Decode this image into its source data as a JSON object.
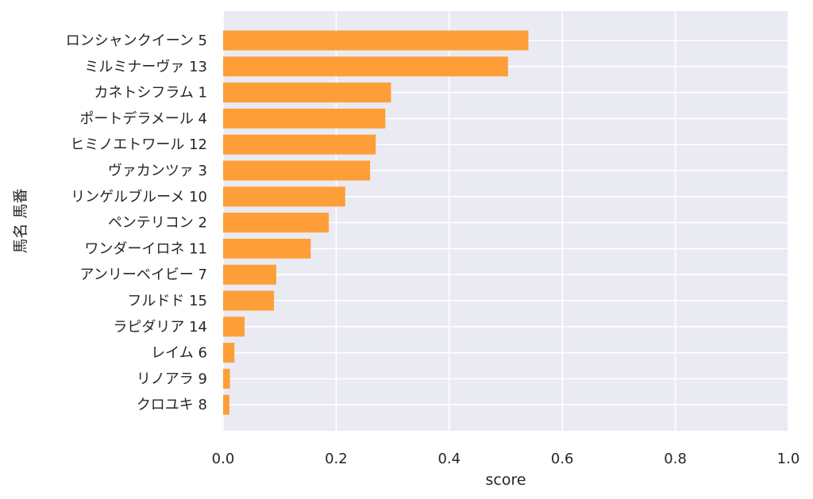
{
  "chart_data": {
    "type": "bar",
    "orientation": "horizontal",
    "categories": [
      "ロンシャンクイーン 5",
      "ミルミナーヴァ 13",
      "カネトシフラム 1",
      "ポートデラメール 4",
      "ヒミノエトワール 12",
      "ヴァカンツァ 3",
      "リンゲルブルーメ 10",
      "ペンテリコン 2",
      "ワンダーイロネ 11",
      "アンリーベイビー 7",
      "フルドド 15",
      "ラピダリア 14",
      "レイム 6",
      "リノアラ 9",
      "クロユキ 8"
    ],
    "values": [
      0.54,
      0.504,
      0.297,
      0.287,
      0.27,
      0.26,
      0.216,
      0.187,
      0.155,
      0.094,
      0.09,
      0.038,
      0.02,
      0.012,
      0.011
    ],
    "xlabel": "score",
    "ylabel": "馬名 馬番",
    "xlim": [
      0,
      1.0
    ],
    "xticks": [
      "0.0",
      "0.2",
      "0.4",
      "0.6",
      "0.8",
      "1.0"
    ],
    "grid": true,
    "colors": {
      "bar": "#ff9a2e",
      "plot_background": "#eaeaf2",
      "grid": "#ffffff"
    }
  }
}
